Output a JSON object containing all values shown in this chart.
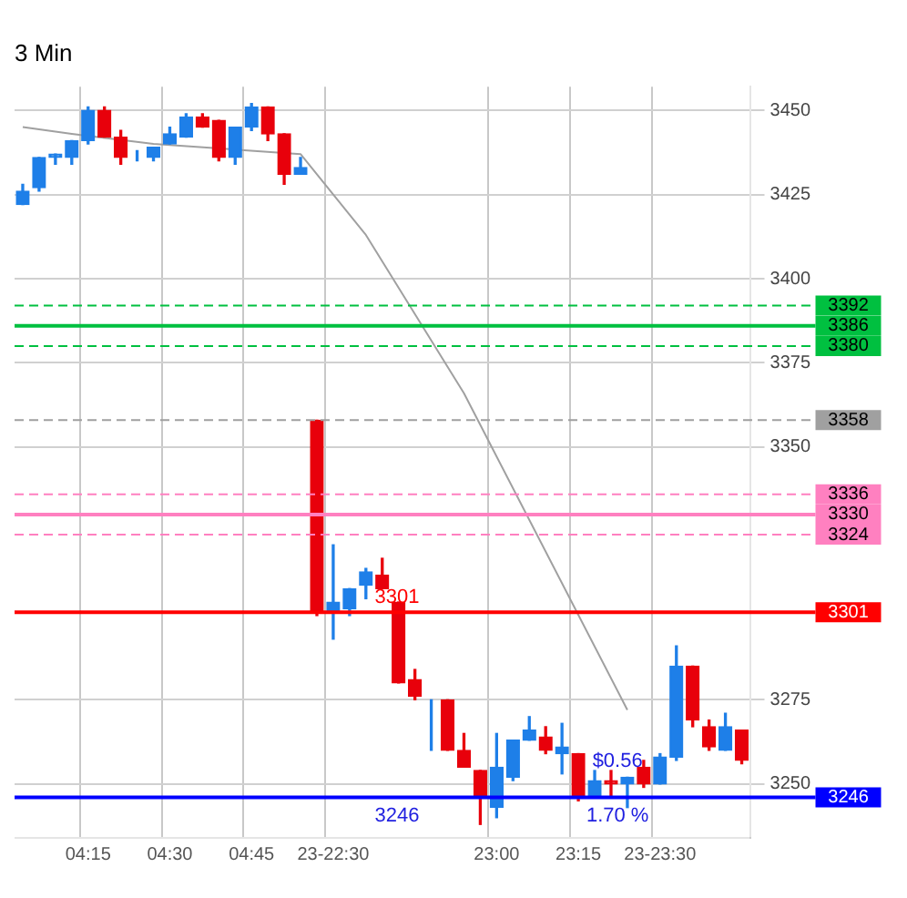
{
  "chart_data": {
    "type": "candlestick",
    "title": "3 Min",
    "categories": [
      null,
      null,
      null,
      null,
      "04:15",
      null,
      null,
      null,
      null,
      "04:30",
      null,
      null,
      null,
      null,
      "04:45",
      null,
      null,
      null,
      null,
      "23-22:30",
      null,
      null,
      null,
      null,
      null,
      null,
      null,
      null,
      null,
      "23:00",
      null,
      null,
      null,
      null,
      "23:15",
      null,
      null,
      null,
      null,
      "23-23:30",
      null,
      null,
      null,
      null,
      null
    ],
    "ohlc": [
      [
        3422,
        3428,
        3422,
        3426
      ],
      [
        3427,
        3436,
        3426,
        3436
      ],
      [
        3436,
        3437,
        3434,
        3437
      ],
      [
        3436,
        3441,
        3434,
        3441
      ],
      [
        3441,
        3451,
        3440,
        3450
      ],
      [
        3450,
        3451,
        3442,
        3442
      ],
      [
        3442,
        3444,
        3434,
        3436
      ],
      [
        3436,
        3438,
        3435,
        3436
      ],
      [
        3436,
        3439,
        3435,
        3439
      ],
      [
        3440,
        3445,
        3440,
        3443
      ],
      [
        3442,
        3449,
        3442,
        3448
      ],
      [
        3448,
        3449,
        3445,
        3445
      ],
      [
        3447,
        3447,
        3435,
        3436
      ],
      [
        3436,
        3445,
        3434,
        3445
      ],
      [
        3445,
        3452,
        3444,
        3451
      ],
      [
        3451,
        3451,
        3441,
        3443
      ],
      [
        3443,
        3443,
        3428,
        3431
      ],
      [
        3431,
        3436,
        3431,
        3433
      ],
      [
        3358,
        3358,
        3300,
        3301
      ],
      [
        3301,
        3321,
        3293,
        3304
      ],
      [
        3302,
        3308,
        3300,
        3308
      ],
      [
        3309,
        3314,
        3305,
        3313
      ],
      [
        3312,
        3317,
        3308,
        3308
      ],
      [
        3304,
        3304,
        3280,
        3280
      ],
      [
        3281,
        3284,
        3275,
        3276
      ],
      [
        3275,
        3275,
        3260,
        3275
      ],
      [
        3275,
        3275,
        3260,
        3260
      ],
      [
        3260,
        3265,
        3255,
        3255
      ],
      [
        3254,
        3254,
        3238,
        3246
      ],
      [
        3243,
        3265,
        3240,
        3255
      ],
      [
        3252,
        3263,
        3251,
        3263
      ],
      [
        3263,
        3270,
        3263,
        3266
      ],
      [
        3264,
        3267,
        3259,
        3260
      ],
      [
        3259,
        3268,
        3253,
        3261
      ],
      [
        3259,
        3259,
        3245,
        3246
      ],
      [
        3246,
        3254,
        3246,
        3251
      ],
      [
        3251,
        3254,
        3246,
        3250
      ],
      [
        3250,
        3252,
        3243,
        3252
      ],
      [
        3255,
        3257,
        3249,
        3250
      ],
      [
        3250,
        3259,
        3250,
        3258
      ],
      [
        3258,
        3291,
        3257,
        3285
      ],
      [
        3285,
        3285,
        3267,
        3269
      ],
      [
        3267,
        3269,
        3260,
        3261
      ],
      [
        3260,
        3271,
        3260,
        3267
      ],
      [
        3266,
        3266,
        3256,
        3257
      ]
    ],
    "colors": [
      "#1e7fe8",
      "#1e7fe8",
      "#1e7fe8",
      "#1e7fe8",
      "#1e7fe8",
      "#e8000b",
      "#e8000b",
      "#1e7fe8",
      "#1e7fe8",
      "#1e7fe8",
      "#1e7fe8",
      "#e8000b",
      "#e8000b",
      "#1e7fe8",
      "#1e7fe8",
      "#e8000b",
      "#e8000b",
      "#1e7fe8",
      "#e8000b",
      "#1e7fe8",
      "#1e7fe8",
      "#1e7fe8",
      "#e8000b",
      "#e8000b",
      "#e8000b",
      "#1e7fe8",
      "#e8000b",
      "#e8000b",
      "#e8000b",
      "#1e7fe8",
      "#1e7fe8",
      "#1e7fe8",
      "#e8000b",
      "#1e7fe8",
      "#e8000b",
      "#1e7fe8",
      "#e8000b",
      "#1e7fe8",
      "#e8000b",
      "#1e7fe8",
      "#1e7fe8",
      "#e8000b",
      "#e8000b",
      "#1e7fe8",
      "#e8000b"
    ],
    "series": [
      {
        "type": "line",
        "color": "#a0a0a0",
        "values": [
          3445,
          null,
          null,
          3443,
          null,
          null,
          null,
          null,
          3440,
          null,
          null,
          null,
          null,
          null,
          null,
          null,
          null,
          3437,
          null,
          null,
          null,
          3413,
          null,
          null,
          null,
          null,
          null,
          3366,
          null,
          null,
          null,
          null,
          null,
          null,
          null,
          null,
          null,
          3272,
          null,
          null,
          null,
          null,
          null,
          null,
          null
        ]
      }
    ],
    "ylim": [
      3234,
      3457
    ],
    "yticks": [
      3250,
      3275,
      3350,
      3375,
      3400,
      3425,
      3450
    ],
    "grid": true,
    "legend": false,
    "ref_lines": [
      {
        "axis": "y",
        "value": 3392,
        "label": "3392",
        "color": "#00c040",
        "line_style": "dashed"
      },
      {
        "axis": "y",
        "value": 3386,
        "label": "3386",
        "color": "#00c040",
        "line_style": "solid"
      },
      {
        "axis": "y",
        "value": 3380,
        "label": "3380",
        "color": "#00c040",
        "line_style": "dashed"
      },
      {
        "axis": "y",
        "value": 3358,
        "label": "3358",
        "color": "#a0a0a0",
        "line_style": "dashed"
      },
      {
        "axis": "y",
        "value": 3336,
        "label": "3336",
        "color": "#ff80c0",
        "line_style": "dashed"
      },
      {
        "axis": "y",
        "value": 3330,
        "label": "3330",
        "color": "#ff80c0",
        "line_style": "solid"
      },
      {
        "axis": "y",
        "value": 3324,
        "label": "3324",
        "color": "#ff80c0",
        "line_style": "dashed"
      },
      {
        "axis": "y",
        "value": 3301,
        "label": "3301",
        "color": "#ff0000",
        "line_style": "solid"
      },
      {
        "axis": "y",
        "value": 3246,
        "label": "3246",
        "color": "#0000ff",
        "line_style": "solid"
      }
    ],
    "annotations": [
      {
        "text": "3301",
        "y": 3301
      },
      {
        "text": "3246",
        "y": 3246
      },
      "$0.56",
      "1.70 %"
    ]
  }
}
